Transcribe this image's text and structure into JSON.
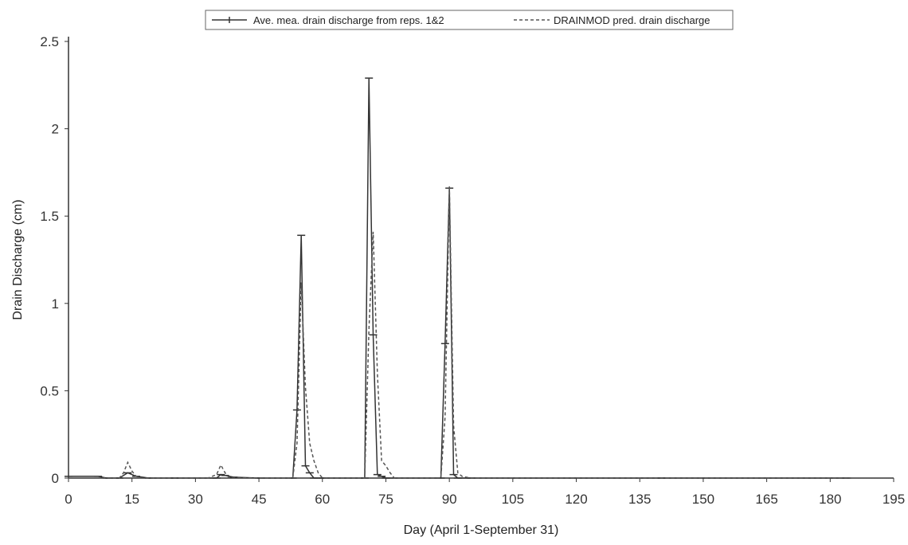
{
  "chart_data": {
    "type": "line",
    "xlabel": "Day (April 1-September 31)",
    "ylabel": "Drain Discharge (cm)",
    "xlim": [
      0,
      195
    ],
    "ylim": [
      0,
      2.5
    ],
    "xticks": [
      0,
      15,
      30,
      45,
      60,
      75,
      90,
      105,
      120,
      135,
      150,
      165,
      180,
      195
    ],
    "yticks": [
      0,
      0.5,
      1,
      1.5,
      2,
      2.5
    ],
    "ytick_labels": [
      "0",
      "0.5",
      "1",
      "1.5",
      "2",
      "2.5"
    ],
    "grid": false,
    "legend_position": "top-center",
    "series": [
      {
        "name": "Ave. mea. drain discharge from reps. 1&2",
        "style": "solid-with-markers",
        "color": "#333333",
        "x": [
          0,
          7,
          9,
          12,
          14,
          16,
          19,
          25,
          35,
          36,
          37,
          39,
          45,
          53,
          54,
          55,
          56,
          57,
          58,
          60,
          70,
          71,
          72,
          73,
          74,
          75,
          88,
          89,
          90,
          91,
          92,
          95,
          140,
          184
        ],
        "y": [
          0.01,
          0.01,
          0.0,
          0.0,
          0.03,
          0.01,
          0.0,
          0.0,
          0.0,
          0.02,
          0.015,
          0.005,
          0.0,
          0.0,
          0.39,
          1.39,
          0.07,
          0.03,
          0.0,
          0.0,
          0.0,
          2.29,
          0.82,
          0.02,
          0.01,
          0.0,
          0.0,
          0.77,
          1.66,
          0.02,
          0.0,
          0.0,
          0.0,
          0.0
        ]
      },
      {
        "name": "DRAINMOD pred. drain discharge",
        "style": "dashed",
        "color": "#555555",
        "x": [
          0,
          12,
          13,
          14,
          15,
          16,
          17,
          20,
          33,
          35,
          36,
          37,
          38,
          45,
          53,
          54,
          55,
          56,
          57,
          58,
          59,
          60,
          61,
          70,
          71,
          72,
          73,
          74,
          75,
          76,
          77,
          88,
          89,
          90,
          91,
          92,
          93,
          95,
          195
        ],
        "y": [
          0.0,
          0.0,
          0.03,
          0.09,
          0.04,
          0.01,
          0.0,
          0.0,
          0.0,
          0.02,
          0.075,
          0.03,
          0.0,
          0.0,
          0.0,
          0.2,
          1.12,
          0.52,
          0.2,
          0.1,
          0.03,
          0.0,
          0.0,
          0.0,
          0.85,
          1.41,
          0.6,
          0.1,
          0.07,
          0.03,
          0.0,
          0.0,
          0.35,
          1.67,
          0.3,
          0.03,
          0.01,
          0.0,
          0.0
        ]
      }
    ]
  }
}
